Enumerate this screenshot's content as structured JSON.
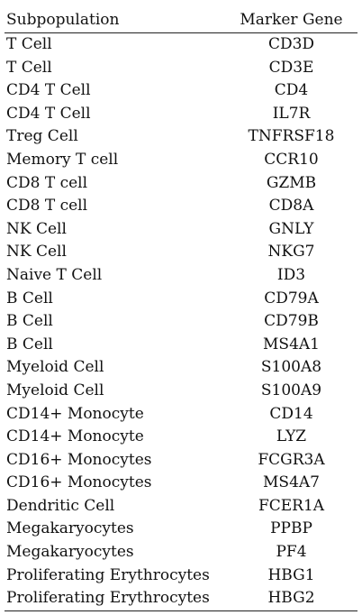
{
  "table": {
    "headers": [
      "Subpopulation",
      "Marker Gene"
    ],
    "rows": [
      [
        "T Cell",
        "CD3D"
      ],
      [
        "T Cell",
        "CD3E"
      ],
      [
        "CD4 T Cell",
        "CD4"
      ],
      [
        "CD4 T Cell",
        "IL7R"
      ],
      [
        "Treg Cell",
        "TNFRSF18"
      ],
      [
        "Memory T cell",
        "CCR10"
      ],
      [
        "CD8 T cell",
        "GZMB"
      ],
      [
        "CD8 T cell",
        "CD8A"
      ],
      [
        "NK Cell",
        "GNLY"
      ],
      [
        "NK Cell",
        "NKG7"
      ],
      [
        "Naive T Cell",
        "ID3"
      ],
      [
        "B Cell",
        "CD79A"
      ],
      [
        "B Cell",
        "CD79B"
      ],
      [
        "B Cell",
        "MS4A1"
      ],
      [
        "Myeloid Cell",
        "S100A8"
      ],
      [
        "Myeloid Cell",
        "S100A9"
      ],
      [
        "CD14+ Monocyte",
        "CD14"
      ],
      [
        "CD14+ Monocyte",
        "LYZ"
      ],
      [
        "CD16+ Monocytes",
        "FCGR3A"
      ],
      [
        "CD16+ Monocytes",
        "MS4A7"
      ],
      [
        "Dendritic Cell",
        "FCER1A"
      ],
      [
        "Megakaryocytes",
        "PPBP"
      ],
      [
        "Megakaryocytes",
        "PF4"
      ],
      [
        "Proliferating Erythrocytes",
        "HBG1"
      ],
      [
        "Proliferating Erythrocytes",
        "HBG2"
      ]
    ]
  }
}
